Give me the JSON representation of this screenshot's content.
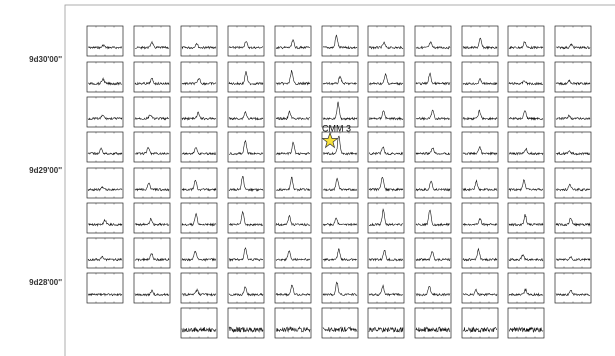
{
  "figure": {
    "dec_labels": [
      "9d30'00''",
      "9d29'00''",
      "9d28'00''"
    ],
    "source_label": "CMM 3"
  }
}
